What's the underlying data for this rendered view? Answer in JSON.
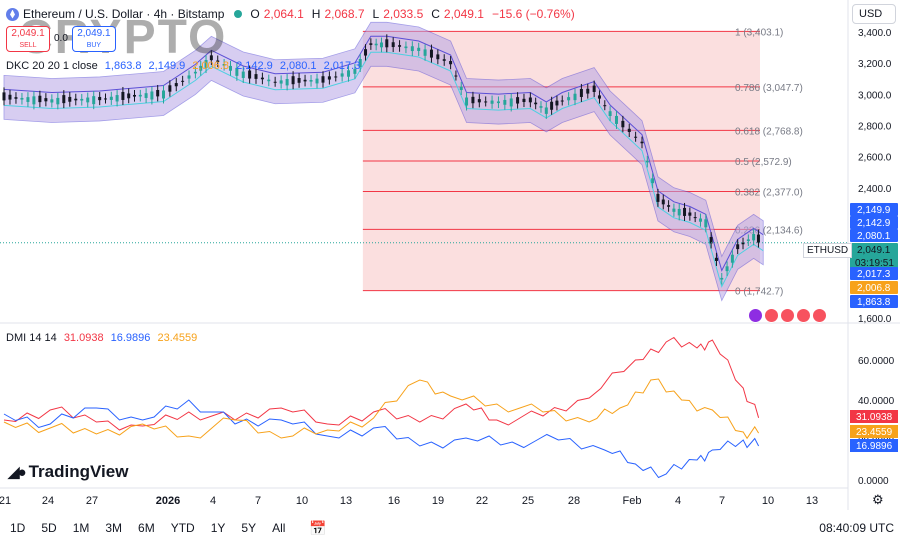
{
  "header": {
    "title": "Ethereum / U.S. Dollar · 4h · Bitstamp",
    "o_label": "O",
    "o": "2,064.1",
    "h_label": "H",
    "h": "2,068.7",
    "l_label": "L",
    "l": "2,033.5",
    "c_label": "C",
    "c": "2,049.1",
    "change": "−15.6 (−0.76%)"
  },
  "trade": {
    "sell_price": "2,049.1",
    "sell_label": "SELL",
    "spread": "0.0",
    "buy_price": "2,049.1",
    "buy_label": "BUY"
  },
  "watermark": "CRYPTO",
  "currency": "USD",
  "indicators": {
    "dkc_label": "DKC 20 20 1 close",
    "dkc_values": [
      "1,863.8",
      "2,149.9",
      "2,006.8",
      "2,142.9",
      "2,080.1",
      "2,017.3"
    ],
    "dkc_colors": [
      "#2962ff",
      "#2962ff",
      "#f7a21b",
      "#2962ff",
      "#2962ff",
      "#2962ff"
    ],
    "dmi_label": "DMI 14 14",
    "dmi_values": [
      "31.0938",
      "16.9896",
      "23.4559"
    ],
    "dmi_colors": [
      "#f23645",
      "#2962ff",
      "#f7a21b"
    ]
  },
  "symbol_tag": "ETHUSD",
  "branding": "TradingView",
  "toolbar": {
    "ranges": [
      "1D",
      "5D",
      "1M",
      "3M",
      "6M",
      "YTD",
      "1Y",
      "5Y",
      "All"
    ],
    "clock": "08:40:09 UTC"
  },
  "colors": {
    "up": "#26a69a",
    "down": "#131722",
    "fib_line": "#f23645",
    "fib_fill": "#f9d4d4",
    "channel": "#5b4fd6",
    "channel_fill": "#b7a6e6",
    "dmi_plus": "#2962ff",
    "dmi_minus": "#f23645",
    "adx": "#f7a21b"
  },
  "chart_data": {
    "type": "line",
    "title": "Ethereum / U.S. Dollar · 4h · Bitstamp",
    "price_axis": {
      "ylim": [
        1600,
        3450
      ],
      "ticks": [
        "1,600.0",
        "2,000.0",
        "2,200.0",
        "2,400.0",
        "2,600.0",
        "2,800.0",
        "3,000.0",
        "3,200.0",
        "3,400.0"
      ]
    },
    "time_axis_labels": [
      "21",
      "24",
      "27",
      "2026",
      "4",
      "7",
      "10",
      "13",
      "16",
      "19",
      "22",
      "25",
      "28",
      "Feb",
      "4",
      "7",
      "10",
      "13"
    ],
    "price_series": [
      {
        "d": 0,
        "p": 2980
      },
      {
        "d": 3,
        "p": 2960
      },
      {
        "d": 6,
        "p": 2970
      },
      {
        "d": 10,
        "p": 3005
      },
      {
        "d": 12,
        "p": 3140
      },
      {
        "d": 13,
        "p": 3230
      },
      {
        "d": 15,
        "p": 3130
      },
      {
        "d": 17,
        "p": 3080
      },
      {
        "d": 20,
        "p": 3090
      },
      {
        "d": 22,
        "p": 3150
      },
      {
        "d": 23,
        "p": 3320
      },
      {
        "d": 24,
        "p": 3320
      },
      {
        "d": 26,
        "p": 3290
      },
      {
        "d": 28,
        "p": 3200
      },
      {
        "d": 29,
        "p": 2960
      },
      {
        "d": 31,
        "p": 2950
      },
      {
        "d": 33,
        "p": 2960
      },
      {
        "d": 34,
        "p": 2900
      },
      {
        "d": 35,
        "p": 2960
      },
      {
        "d": 37,
        "p": 3030
      },
      {
        "d": 38,
        "p": 2880
      },
      {
        "d": 40,
        "p": 2690
      },
      {
        "d": 41,
        "p": 2330
      },
      {
        "d": 42,
        "p": 2260
      },
      {
        "d": 43,
        "p": 2230
      },
      {
        "d": 44,
        "p": 2180
      },
      {
        "d": 45,
        "p": 1820
      },
      {
        "d": 46,
        "p": 2020
      },
      {
        "d": 47,
        "p": 2090
      },
      {
        "d": 47.6,
        "p": 2049.1
      }
    ],
    "fibonacci": [
      {
        "level": "1",
        "price": 3403.1,
        "label": "1 (3,403.1)"
      },
      {
        "level": "0.786",
        "price": 3047.7,
        "label": "0.786 (3,047.7)"
      },
      {
        "level": "0.618",
        "price": 2768.8,
        "label": "0.618 (2,768.8)"
      },
      {
        "level": "0.5",
        "price": 2572.9,
        "label": "0.5 (2,572.9)"
      },
      {
        "level": "0.382",
        "price": 2377.0,
        "label": "0.382 (2,377.0)"
      },
      {
        "level": "0.236",
        "price": 2134.6,
        "label": "0.236 (2,134.6)"
      },
      {
        "level": "0",
        "price": 1742.7,
        "label": "0 (1,742.7)"
      }
    ],
    "price_tags": [
      {
        "value": 2149.9,
        "label": "2,149.9",
        "color": "#2962ff"
      },
      {
        "value": 2142.9,
        "label": "2,142.9",
        "color": "#2962ff"
      },
      {
        "value": 2080.1,
        "label": "2,080.1",
        "color": "#2962ff"
      },
      {
        "value": 2049.1,
        "label": "2,049.1",
        "color": "#26a69a",
        "countdown": "03:19:51"
      },
      {
        "value": 2017.3,
        "label": "2,017.3",
        "color": "#2962ff"
      },
      {
        "value": 2006.8,
        "label": "2,006.8",
        "color": "#f7a21b"
      },
      {
        "value": 1863.8,
        "label": "1,863.8",
        "color": "#2962ff"
      }
    ],
    "dmi": {
      "ylim": [
        0,
        70
      ],
      "ticks": [
        "0.0000",
        "20.0000",
        "40.0000",
        "60.0000"
      ],
      "series": [
        {
          "name": "-DI",
          "color": "#f23645",
          "values": [
            {
              "d": 0,
              "v": 30
            },
            {
              "d": 3,
              "v": 35
            },
            {
              "d": 6,
              "v": 29
            },
            {
              "d": 9,
              "v": 27
            },
            {
              "d": 12,
              "v": 34
            },
            {
              "d": 15,
              "v": 30
            },
            {
              "d": 18,
              "v": 36
            },
            {
              "d": 21,
              "v": 28
            },
            {
              "d": 24,
              "v": 34
            },
            {
              "d": 27,
              "v": 29
            },
            {
              "d": 30,
              "v": 38
            },
            {
              "d": 32,
              "v": 30
            },
            {
              "d": 35,
              "v": 32
            },
            {
              "d": 38,
              "v": 41
            },
            {
              "d": 41,
              "v": 60
            },
            {
              "d": 43,
              "v": 69
            },
            {
              "d": 45,
              "v": 66
            },
            {
              "d": 46,
              "v": 70
            },
            {
              "d": 48,
              "v": 46
            },
            {
              "d": 49,
              "v": 31.09
            }
          ]
        },
        {
          "name": "+DI",
          "color": "#2962ff",
          "values": [
            {
              "d": 0,
              "v": 33
            },
            {
              "d": 3,
              "v": 28
            },
            {
              "d": 6,
              "v": 36
            },
            {
              "d": 9,
              "v": 30
            },
            {
              "d": 12,
              "v": 40
            },
            {
              "d": 15,
              "v": 28
            },
            {
              "d": 18,
              "v": 30
            },
            {
              "d": 21,
              "v": 22
            },
            {
              "d": 24,
              "v": 26
            },
            {
              "d": 27,
              "v": 17
            },
            {
              "d": 30,
              "v": 21
            },
            {
              "d": 33,
              "v": 19
            },
            {
              "d": 36,
              "v": 20
            },
            {
              "d": 39,
              "v": 15
            },
            {
              "d": 41,
              "v": 8
            },
            {
              "d": 43,
              "v": 3
            },
            {
              "d": 45,
              "v": 10
            },
            {
              "d": 46,
              "v": 15
            },
            {
              "d": 48,
              "v": 20
            },
            {
              "d": 49,
              "v": 16.99
            }
          ]
        },
        {
          "name": "ADX",
          "color": "#f7a21b",
          "values": [
            {
              "d": 0,
              "v": 29
            },
            {
              "d": 3,
              "v": 26
            },
            {
              "d": 6,
              "v": 23
            },
            {
              "d": 9,
              "v": 28
            },
            {
              "d": 12,
              "v": 22
            },
            {
              "d": 15,
              "v": 30
            },
            {
              "d": 18,
              "v": 21
            },
            {
              "d": 21,
              "v": 25
            },
            {
              "d": 24,
              "v": 31
            },
            {
              "d": 27,
              "v": 50
            },
            {
              "d": 29,
              "v": 42
            },
            {
              "d": 32,
              "v": 38
            },
            {
              "d": 35,
              "v": 34
            },
            {
              "d": 38,
              "v": 29
            },
            {
              "d": 40,
              "v": 36
            },
            {
              "d": 42,
              "v": 50
            },
            {
              "d": 44,
              "v": 40
            },
            {
              "d": 46,
              "v": 35
            },
            {
              "d": 48,
              "v": 24
            },
            {
              "d": 49,
              "v": 23.46
            }
          ]
        }
      ]
    }
  }
}
